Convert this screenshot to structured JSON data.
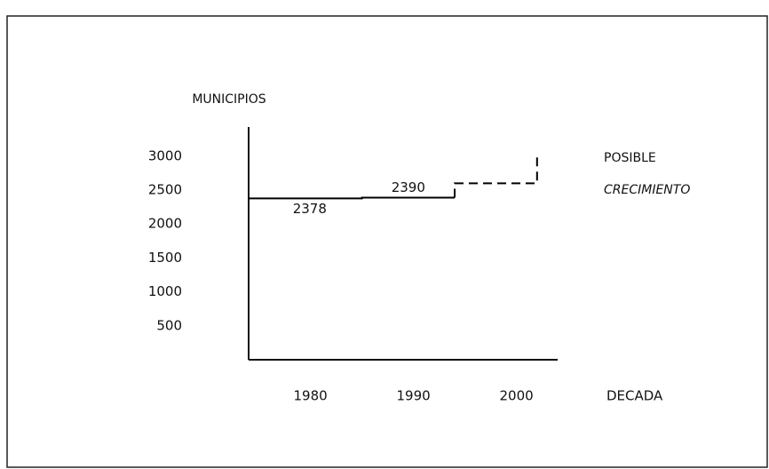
{
  "chart_data": {
    "type": "step_line",
    "y_label": "MUNICIPIOS",
    "x_label": "DECADA",
    "side_label": [
      "POSIBLE",
      "CRECIMIENTO"
    ],
    "xlim": [
      1974,
      2004
    ],
    "xticks": [
      1980,
      1990,
      2000
    ],
    "ylim": [
      0,
      3430
    ],
    "yticks": [
      500,
      1000,
      1500,
      2000,
      2500,
      3000
    ],
    "series": [
      {
        "color": "#000000",
        "dashed": false,
        "x": [
          1974,
          1985,
          1985,
          1994
        ],
        "values": [
          2378,
          2378,
          2390,
          2390
        ]
      },
      {
        "color": "#000000",
        "dashed": true,
        "x": [
          1994,
          1994,
          2002,
          2002
        ],
        "values": [
          2390,
          2600,
          2600,
          3000
        ]
      }
    ]
  }
}
